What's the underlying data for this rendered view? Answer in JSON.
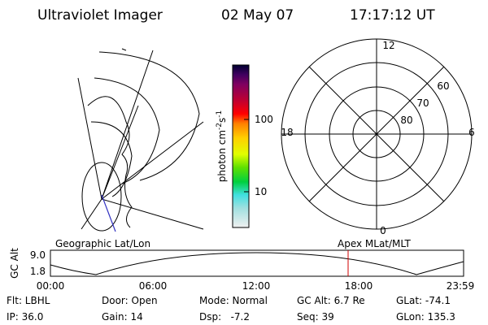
{
  "header": {
    "instrument": "Ultraviolet Imager",
    "date": "02 May 07",
    "time": "17:17:12 UT"
  },
  "colorbar": {
    "unit": {
      "base": "photon cm",
      "exp1": "-2",
      "mid": "s",
      "exp2": "-1"
    },
    "ticks": [
      "100",
      "10"
    ]
  },
  "polar": {
    "mlt_labels": [
      "12",
      "18",
      "6",
      "0"
    ],
    "mlat_labels": [
      "60",
      "70",
      "80"
    ]
  },
  "map_labels": {
    "geographic": "Geographic Lat/Lon",
    "apex": "Apex MLat/MLT"
  },
  "altitude_plot": {
    "axis_label": "GC Alt",
    "y_labels": [
      "9.0",
      "1.8"
    ],
    "x_labels": [
      "00:00",
      "06:00",
      "12:00",
      "18:00",
      "23:59"
    ]
  },
  "status": {
    "rows": [
      [
        "Flt: LBHL",
        "Door: Open",
        "Mode: Normal",
        "GC Alt: 6.7 Re",
        "GLat: -74.1"
      ],
      [
        "IP: 36.0",
        "Gain: 14",
        "Dsp:   -7.2",
        "Seq: 39",
        "GLon: 135.3"
      ]
    ]
  }
}
